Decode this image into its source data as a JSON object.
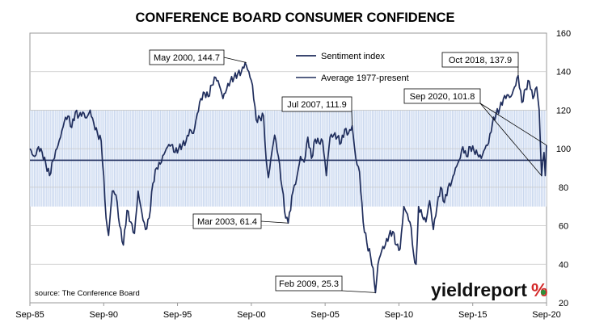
{
  "chart_data": {
    "type": "line",
    "title": "CONFERENCE BOARD CONSUMER CONFIDENCE",
    "xlabel": "",
    "ylabel": "",
    "ylim": [
      20,
      160
    ],
    "y_ticks": [
      20,
      40,
      60,
      80,
      100,
      120,
      140,
      160
    ],
    "x_ticks": [
      "Sep-85",
      "Sep-90",
      "Sep-95",
      "Sep-00",
      "Sep-05",
      "Sep-10",
      "Sep-15",
      "Sep-20"
    ],
    "x_range": [
      "Sep-85",
      "Sep-20"
    ],
    "grid": "horizontal",
    "shaded_band": {
      "from": 70,
      "to": 120
    },
    "legend_position": "top-center",
    "average": {
      "name": "Average 1977-present",
      "value": 94
    },
    "series": [
      {
        "name": "Sentiment index",
        "color": "#1f2d5c",
        "points": [
          [
            1985.67,
            100
          ],
          [
            1985.83,
            97
          ],
          [
            1986.0,
            96
          ],
          [
            1986.25,
            101
          ],
          [
            1986.5,
            98
          ],
          [
            1986.75,
            92
          ],
          [
            1987.0,
            86
          ],
          [
            1987.25,
            94
          ],
          [
            1987.5,
            100
          ],
          [
            1987.75,
            106
          ],
          [
            1988.0,
            114
          ],
          [
            1988.25,
            117
          ],
          [
            1988.5,
            111
          ],
          [
            1988.75,
            119
          ],
          [
            1989.0,
            117
          ],
          [
            1989.25,
            119
          ],
          [
            1989.5,
            116
          ],
          [
            1989.75,
            120
          ],
          [
            1990.0,
            113
          ],
          [
            1990.25,
            108
          ],
          [
            1990.5,
            104
          ],
          [
            1990.67,
            86
          ],
          [
            1990.83,
            64
          ],
          [
            1991.0,
            55
          ],
          [
            1991.25,
            78
          ],
          [
            1991.5,
            76
          ],
          [
            1991.75,
            60
          ],
          [
            1992.0,
            50
          ],
          [
            1992.25,
            68
          ],
          [
            1992.5,
            62
          ],
          [
            1992.75,
            56
          ],
          [
            1993.0,
            78
          ],
          [
            1993.25,
            67
          ],
          [
            1993.5,
            58
          ],
          [
            1993.75,
            64
          ],
          [
            1994.0,
            82
          ],
          [
            1994.25,
            90
          ],
          [
            1994.5,
            92
          ],
          [
            1994.75,
            97
          ],
          [
            1995.0,
            101
          ],
          [
            1995.25,
            102
          ],
          [
            1995.5,
            98
          ],
          [
            1995.75,
            100
          ],
          [
            1996.0,
            102
          ],
          [
            1996.25,
            104
          ],
          [
            1996.5,
            110
          ],
          [
            1996.75,
            108
          ],
          [
            1997.0,
            118
          ],
          [
            1997.25,
            126
          ],
          [
            1997.5,
            129
          ],
          [
            1997.75,
            127
          ],
          [
            1998.0,
            133
          ],
          [
            1998.25,
            137
          ],
          [
            1998.5,
            133
          ],
          [
            1998.75,
            126
          ],
          [
            1999.0,
            131
          ],
          [
            1999.25,
            135
          ],
          [
            1999.5,
            137
          ],
          [
            1999.75,
            139
          ],
          [
            2000.0,
            140
          ],
          [
            2000.25,
            144.7
          ],
          [
            2000.5,
            140
          ],
          [
            2000.75,
            133
          ],
          [
            2001.0,
            115
          ],
          [
            2001.25,
            116
          ],
          [
            2001.5,
            117
          ],
          [
            2001.67,
            95
          ],
          [
            2001.83,
            85
          ],
          [
            2002.0,
            95
          ],
          [
            2002.25,
            107
          ],
          [
            2002.5,
            96
          ],
          [
            2002.75,
            80
          ],
          [
            2003.0,
            64
          ],
          [
            2003.17,
            61.4
          ],
          [
            2003.5,
            78
          ],
          [
            2003.75,
            85
          ],
          [
            2004.0,
            96
          ],
          [
            2004.25,
            93
          ],
          [
            2004.5,
            106
          ],
          [
            2004.75,
            95
          ],
          [
            2005.0,
            105
          ],
          [
            2005.25,
            103
          ],
          [
            2005.5,
            104
          ],
          [
            2005.75,
            86
          ],
          [
            2006.0,
            106
          ],
          [
            2006.25,
            107
          ],
          [
            2006.5,
            106
          ],
          [
            2006.75,
            103
          ],
          [
            2007.0,
            110
          ],
          [
            2007.25,
            108
          ],
          [
            2007.5,
            111.9
          ],
          [
            2007.75,
            95
          ],
          [
            2008.0,
            88
          ],
          [
            2008.25,
            62
          ],
          [
            2008.5,
            51
          ],
          [
            2008.75,
            44
          ],
          [
            2008.92,
            38
          ],
          [
            2009.08,
            25.3
          ],
          [
            2009.25,
            40
          ],
          [
            2009.5,
            47
          ],
          [
            2009.75,
            50
          ],
          [
            2010.0,
            55
          ],
          [
            2010.25,
            57
          ],
          [
            2010.5,
            50
          ],
          [
            2010.75,
            48
          ],
          [
            2011.0,
            70
          ],
          [
            2011.25,
            66
          ],
          [
            2011.5,
            59
          ],
          [
            2011.67,
            45
          ],
          [
            2011.83,
            40
          ],
          [
            2012.0,
            70
          ],
          [
            2012.25,
            65
          ],
          [
            2012.5,
            62
          ],
          [
            2012.75,
            73
          ],
          [
            2013.0,
            58
          ],
          [
            2013.25,
            70
          ],
          [
            2013.5,
            80
          ],
          [
            2013.75,
            72
          ],
          [
            2014.0,
            80
          ],
          [
            2014.25,
            83
          ],
          [
            2014.5,
            90
          ],
          [
            2014.75,
            94
          ],
          [
            2015.0,
            101
          ],
          [
            2015.25,
            96
          ],
          [
            2015.5,
            101
          ],
          [
            2015.75,
            99
          ],
          [
            2016.0,
            97
          ],
          [
            2016.25,
            95
          ],
          [
            2016.5,
            100
          ],
          [
            2016.75,
            103
          ],
          [
            2017.0,
            113
          ],
          [
            2017.25,
            118
          ],
          [
            2017.5,
            121
          ],
          [
            2017.75,
            126
          ],
          [
            2018.0,
            128
          ],
          [
            2018.25,
            127
          ],
          [
            2018.5,
            132
          ],
          [
            2018.75,
            137.9
          ],
          [
            2019.0,
            124
          ],
          [
            2019.25,
            131
          ],
          [
            2019.5,
            135
          ],
          [
            2019.75,
            126
          ],
          [
            2020.0,
            132
          ],
          [
            2020.17,
            120
          ],
          [
            2020.33,
            86
          ],
          [
            2020.5,
            98
          ],
          [
            2020.58,
            86
          ],
          [
            2020.67,
            101.8
          ]
        ]
      }
    ],
    "annotations": [
      {
        "label": "May 2000, 144.7",
        "x": 2000.33,
        "y": 144.7
      },
      {
        "label": "Jul 2007, 111.9",
        "x": 2007.5,
        "y": 111.9
      },
      {
        "label": "Mar 2003, 61.4",
        "x": 2003.17,
        "y": 61.4
      },
      {
        "label": "Feb 2009, 25.3",
        "x": 2009.08,
        "y": 25.3
      },
      {
        "label": "Oct 2018, 137.9",
        "x": 2018.75,
        "y": 137.9
      },
      {
        "label": "Sep 2020, 101.8",
        "x": 2020.67,
        "y": 101.8
      }
    ],
    "source_note": "source: The Conference Board"
  },
  "branding": {
    "name_part": "yieldreport",
    "symbol": "%",
    "color_main": "#111111",
    "color_accent_left": "#d42a2a",
    "color_accent_right": "#2f8f3a"
  }
}
